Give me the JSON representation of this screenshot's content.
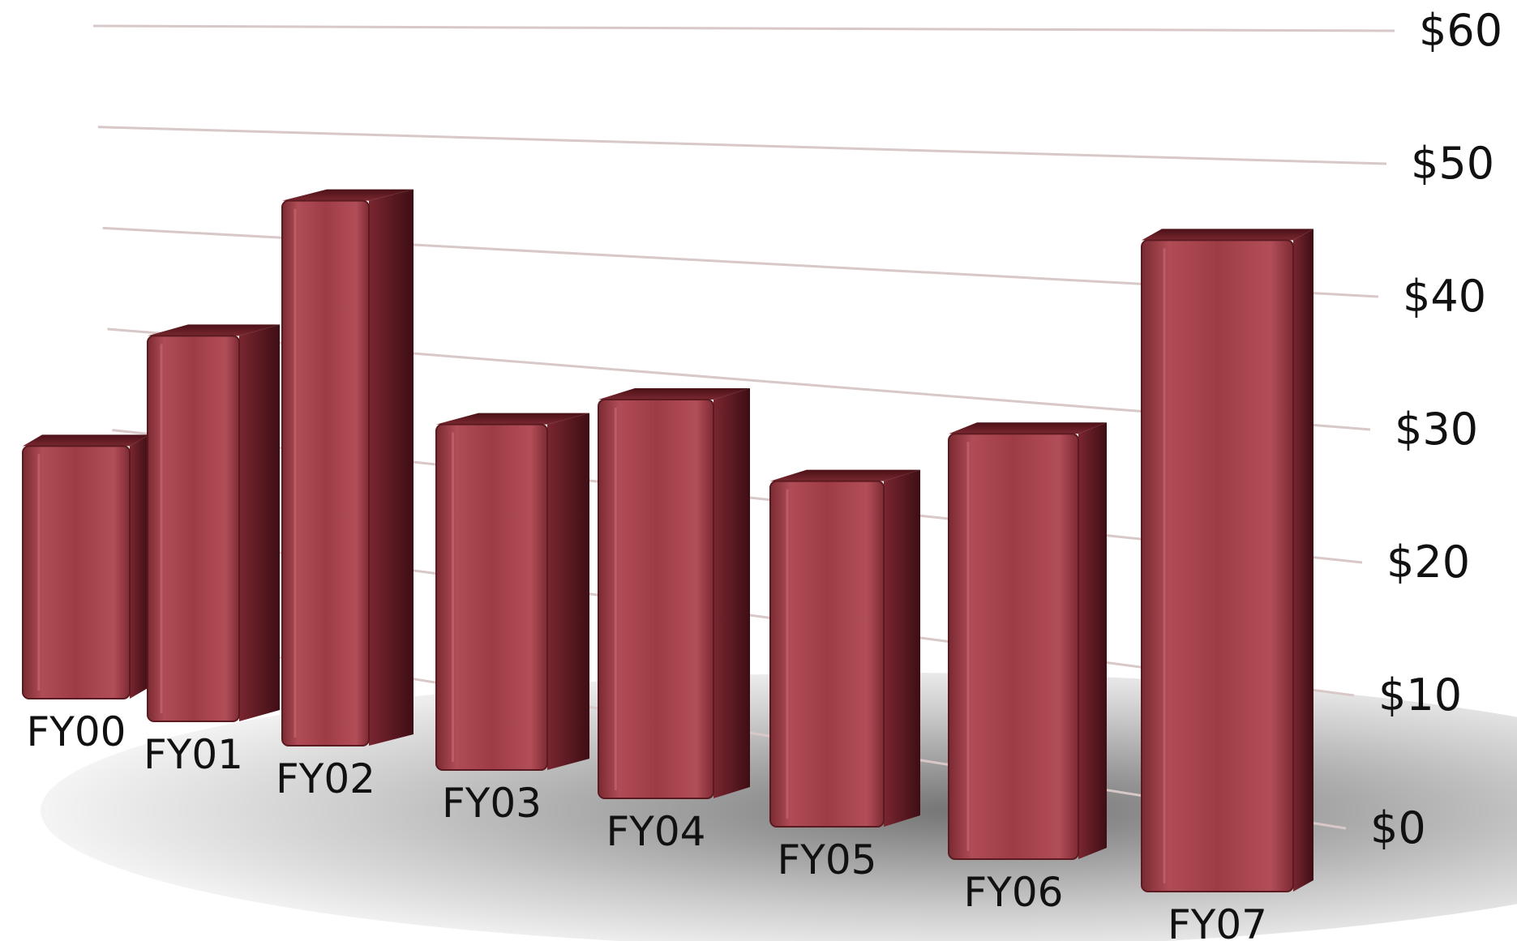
{
  "chart_data": {
    "type": "bar",
    "style": "3d-perspective",
    "categories": [
      "FY00",
      "FY01",
      "FY02",
      "FY03",
      "FY04",
      "FY05",
      "FY06",
      "FY07"
    ],
    "values": [
      19,
      29,
      41,
      26,
      30,
      26,
      32,
      49
    ],
    "ylim": [
      0,
      60
    ],
    "y_ticks": [
      "$0",
      "$10",
      "$20",
      "$30",
      "$40",
      "$50",
      "$60"
    ],
    "y_axis_position": "right",
    "grid": true,
    "legend": "none",
    "colors": {
      "bar_front": "#a8404a",
      "bar_side": "#5a1a20",
      "bar_top": "#6a1e26",
      "grid": "#d8c8c8",
      "text": "#111111"
    }
  }
}
